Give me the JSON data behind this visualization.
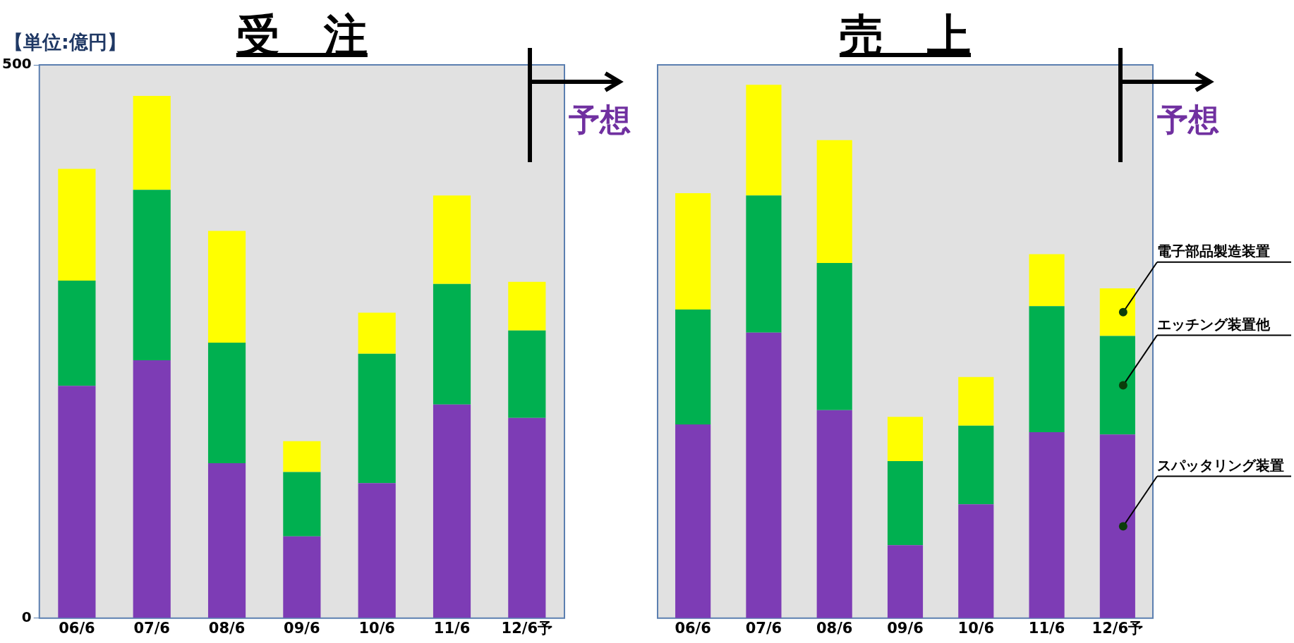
{
  "chart_data": [
    {
      "type": "bar",
      "title": "受　注",
      "stacked": true,
      "grid": false,
      "ylim": [
        0,
        500
      ],
      "yticks": [
        0,
        500
      ],
      "categories": [
        "06/6",
        "07/6",
        "08/6",
        "09/6",
        "10/6",
        "11/6",
        "12/6予"
      ],
      "series": [
        {
          "color": "#7d3cb5",
          "values": [
            210,
            233,
            140,
            74,
            122,
            193,
            181
          ]
        },
        {
          "color": "#00b050",
          "values": [
            95,
            154,
            109,
            58,
            117,
            109,
            79
          ]
        },
        {
          "color": "#ffff00",
          "values": [
            101,
            85,
            101,
            28,
            37,
            80,
            44
          ]
        }
      ],
      "annotations": [
        "【単位:億円】",
        "予想"
      ]
    },
    {
      "type": "bar",
      "title": "売　上",
      "stacked": true,
      "grid": false,
      "ylim": [
        0,
        500
      ],
      "tick_labels": "x",
      "legend": "right",
      "categories": [
        "06/6",
        "07/6",
        "08/6",
        "09/6",
        "10/6",
        "11/6",
        "12/6予"
      ],
      "series": [
        {
          "name": "スパッタリング装置",
          "color": "#7d3cb5",
          "values": [
            175,
            258,
            188,
            66,
            103,
            168,
            166
          ]
        },
        {
          "name": "エッチング装置他",
          "color": "#00b050",
          "values": [
            104,
            124,
            133,
            76,
            71,
            114,
            89
          ]
        },
        {
          "name": "電子部品製造装置",
          "color": "#ffff00",
          "values": [
            105,
            100,
            111,
            40,
            44,
            47,
            43
          ]
        }
      ],
      "annotations": [
        "予想"
      ]
    }
  ]
}
